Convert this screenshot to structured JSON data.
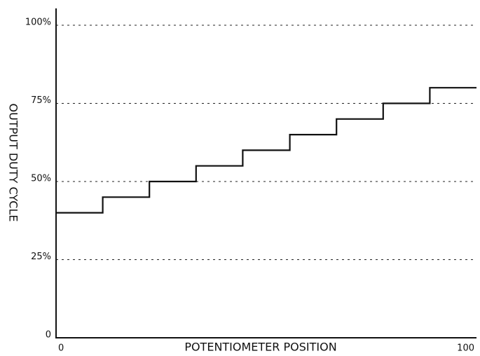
{
  "chart_data": {
    "type": "step",
    "xlabel": "POTENTIOMETER POSITION",
    "ylabel": "OUTPUT DUTY CYCLE",
    "x": [
      0,
      11.1,
      22.2,
      33.3,
      44.4,
      55.6,
      66.7,
      77.8,
      88.9,
      100
    ],
    "values": [
      40,
      45,
      50,
      55,
      60,
      65,
      70,
      75,
      80,
      80
    ],
    "color": "#111111",
    "xlim": [
      0,
      100
    ],
    "xticks": [
      0,
      100
    ],
    "ylim": [
      0,
      100
    ],
    "yticks": [
      0,
      {
        "value": 25,
        "label": "25%"
      },
      {
        "value": 50,
        "label": "50%"
      },
      {
        "value": 75,
        "label": "75%"
      },
      {
        "value": 100,
        "label": "100%"
      }
    ],
    "grid": true
  }
}
